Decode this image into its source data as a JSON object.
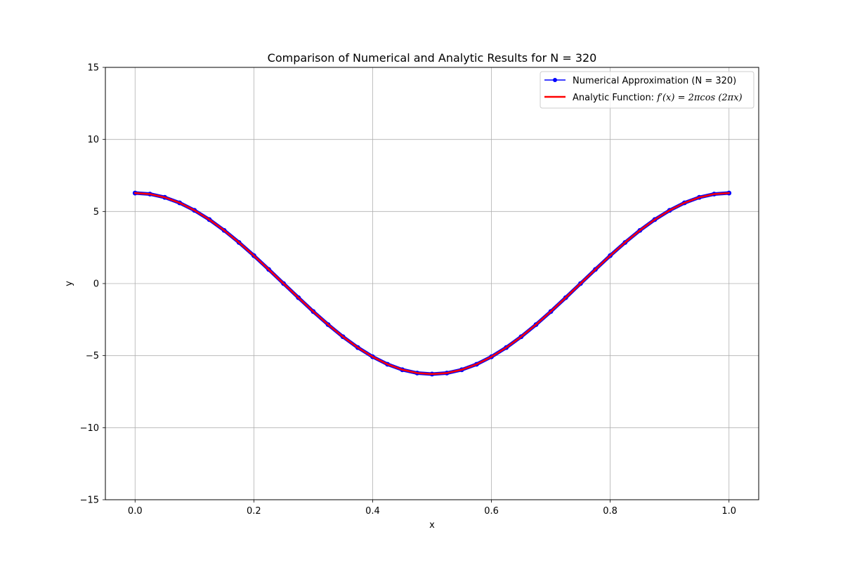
{
  "chart_data": {
    "type": "line",
    "title": "Comparison of Numerical and Analytic Results for N = 320",
    "xlabel": "x",
    "ylabel": "y",
    "xlim": [
      -0.05,
      1.05
    ],
    "ylim": [
      -15,
      15
    ],
    "x_ticks": [
      "0.0",
      "0.2",
      "0.4",
      "0.6",
      "0.8",
      "1.0"
    ],
    "y_ticks": [
      "−15",
      "−10",
      "−5",
      "0",
      "5",
      "10",
      "15"
    ],
    "grid": true,
    "legend_position": "top-right",
    "series": [
      {
        "name": "Numerical Approximation (N = 320)",
        "style": "line-markers",
        "color": "#0000ff",
        "x": [
          0.0,
          0.025,
          0.05,
          0.075,
          0.1,
          0.125,
          0.15,
          0.175,
          0.2,
          0.225,
          0.25,
          0.275,
          0.3,
          0.325,
          0.35,
          0.375,
          0.4,
          0.425,
          0.45,
          0.475,
          0.5,
          0.525,
          0.55,
          0.575,
          0.6,
          0.625,
          0.65,
          0.675,
          0.7,
          0.725,
          0.75,
          0.775,
          0.8,
          0.825,
          0.85,
          0.875,
          0.9,
          0.925,
          0.95,
          0.975,
          1.0
        ],
        "y": [
          6.28,
          6.21,
          5.98,
          5.6,
          5.08,
          4.44,
          3.69,
          2.85,
          1.94,
          0.98,
          0.0,
          -0.98,
          -1.94,
          -2.85,
          -3.69,
          -4.44,
          -5.08,
          -5.6,
          -5.98,
          -6.21,
          -6.28,
          -6.21,
          -5.98,
          -5.6,
          -5.08,
          -4.44,
          -3.69,
          -2.85,
          -1.94,
          -0.98,
          0.0,
          0.98,
          1.94,
          2.85,
          3.69,
          4.44,
          5.08,
          5.6,
          5.98,
          6.21,
          6.28
        ]
      },
      {
        "name": "Analytic Function: ",
        "formula": "f′(x) = 2πcos (2πx)",
        "style": "line",
        "color": "#ff0000",
        "x": [
          0.0,
          0.025,
          0.05,
          0.075,
          0.1,
          0.125,
          0.15,
          0.175,
          0.2,
          0.225,
          0.25,
          0.275,
          0.3,
          0.325,
          0.35,
          0.375,
          0.4,
          0.425,
          0.45,
          0.475,
          0.5,
          0.525,
          0.55,
          0.575,
          0.6,
          0.625,
          0.65,
          0.675,
          0.7,
          0.725,
          0.75,
          0.775,
          0.8,
          0.825,
          0.85,
          0.875,
          0.9,
          0.925,
          0.95,
          0.975,
          1.0
        ],
        "y": [
          6.28,
          6.21,
          5.98,
          5.6,
          5.08,
          4.44,
          3.69,
          2.85,
          1.94,
          0.98,
          0.0,
          -0.98,
          -1.94,
          -2.85,
          -3.69,
          -4.44,
          -5.08,
          -5.6,
          -5.98,
          -6.21,
          -6.28,
          -6.21,
          -5.98,
          -5.6,
          -5.08,
          -4.44,
          -3.69,
          -2.85,
          -1.94,
          -0.98,
          0.0,
          0.98,
          1.94,
          2.85,
          3.69,
          4.44,
          5.08,
          5.6,
          5.98,
          6.21,
          6.28
        ]
      }
    ]
  }
}
